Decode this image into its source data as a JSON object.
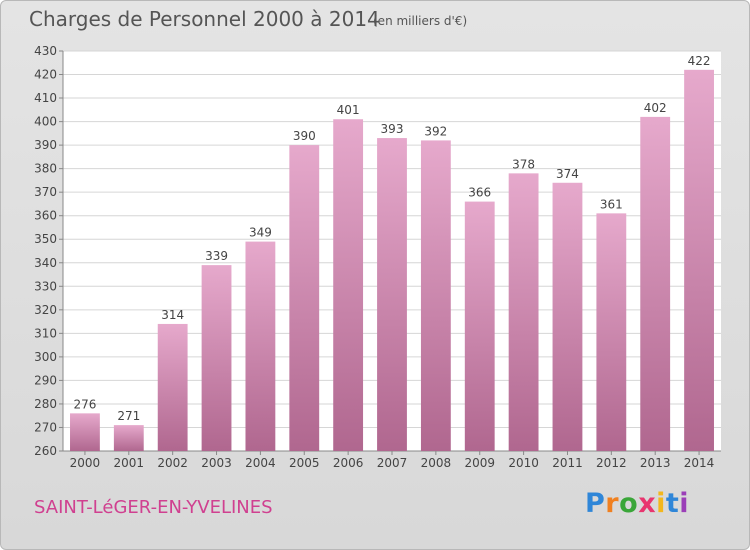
{
  "header": {
    "title": "Charges de Personnel 2000 à 2014",
    "subtitle": "(en milliers d'€)"
  },
  "footer": {
    "commune": "SAINT-LéGER-EN-YVELINES",
    "logo": "Proxiti",
    "logo_colors": [
      "#2f86d8",
      "#f08020",
      "#3aa639",
      "#e8356f",
      "#f3b71c",
      "#2f86d8",
      "#9b3fb8"
    ]
  },
  "chart_data": {
    "type": "bar",
    "title": "Charges de Personnel 2000 à 2014",
    "subtitle": "(en milliers d'€)",
    "categories": [
      "2000",
      "2001",
      "2002",
      "2003",
      "2004",
      "2005",
      "2006",
      "2007",
      "2008",
      "2009",
      "2010",
      "2011",
      "2012",
      "2013",
      "2014"
    ],
    "values": [
      276,
      271,
      314,
      339,
      349,
      390,
      401,
      393,
      392,
      366,
      378,
      374,
      361,
      402,
      422
    ],
    "ylim": [
      260,
      430
    ],
    "yticks": [
      260,
      270,
      280,
      290,
      300,
      310,
      320,
      330,
      340,
      350,
      360,
      370,
      380,
      390,
      400,
      410,
      420,
      430
    ],
    "grid": true,
    "bar_color_top": "#e6a9cc",
    "bar_color_bottom": "#b0678f",
    "plot_background": "#ffffff"
  }
}
